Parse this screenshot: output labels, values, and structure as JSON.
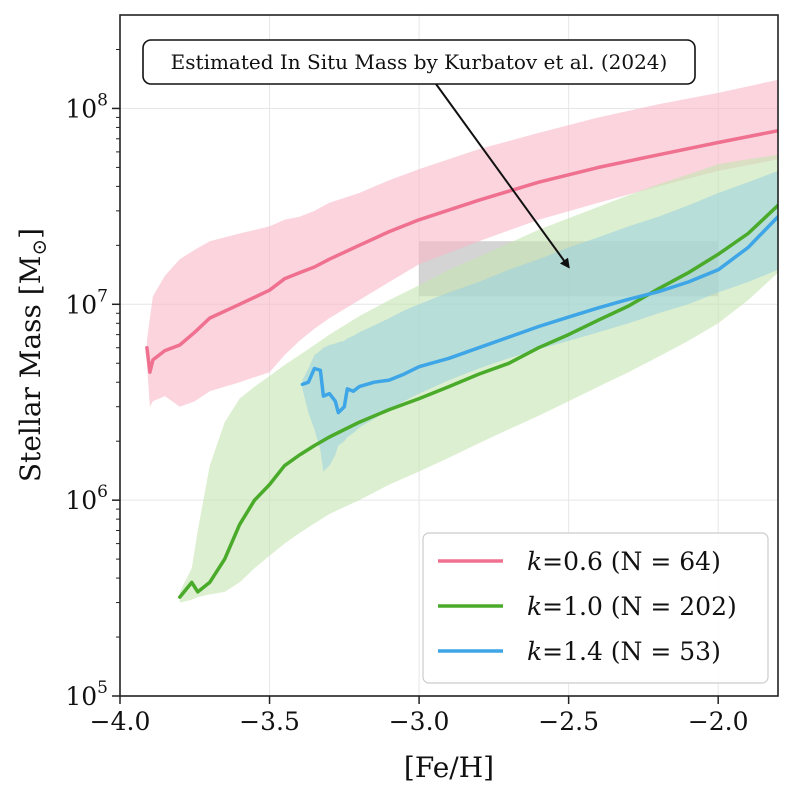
{
  "chart_data": {
    "type": "line",
    "xlabel": "[Fe/H]",
    "ylabel": "Stellar Mass [M",
    "ylabel_sub": "⊙",
    "ylabel_close": "]",
    "xlim": [
      -4.0,
      -1.8
    ],
    "ylim": [
      100000,
      300000000
    ],
    "yscale": "log",
    "grid": true,
    "x_ticks": [
      -4.0,
      -3.5,
      -3.0,
      -2.5,
      -2.0
    ],
    "x_tick_labels": [
      "−4.0",
      "−3.5",
      "−3.0",
      "−2.5",
      "−2.0"
    ],
    "y_ticks": [
      {
        "value": 100000,
        "base": "10",
        "exp": "5"
      },
      {
        "value": 1000000,
        "base": "10",
        "exp": "6"
      },
      {
        "value": 10000000,
        "base": "10",
        "exp": "7"
      },
      {
        "value": 100000000,
        "base": "10",
        "exp": "8"
      }
    ],
    "annotation": {
      "text": "Estimated In Situ Mass by Kurbatov et al. (2024)",
      "box_x": [
        -3.0,
        -2.0
      ],
      "box_y": [
        11000000,
        21000000
      ],
      "arrow_to": [
        -2.5,
        15500000
      ],
      "box_color": "#a9a9a9"
    },
    "legend_position": "lower-right",
    "series": [
      {
        "name": "k=0.6 (N = 64)",
        "k": "0.6",
        "n_label": "(N = 64)",
        "color": "#f07090",
        "band_color": "#f8b8c8",
        "x": [
          -3.91,
          -3.9,
          -3.89,
          -3.85,
          -3.8,
          -3.75,
          -3.7,
          -3.6,
          -3.5,
          -3.45,
          -3.4,
          -3.35,
          -3.3,
          -3.2,
          -3.1,
          -3.0,
          -2.8,
          -2.6,
          -2.4,
          -2.2,
          -2.0,
          -1.8
        ],
        "y": [
          6000000,
          4500000,
          5200000,
          5800000,
          6200000,
          7200000,
          8500000,
          10000000,
          11800000,
          13500000,
          14500000,
          15500000,
          17000000,
          20000000,
          23500000,
          27000000,
          34000000,
          42000000,
          50000000,
          58000000,
          67000000,
          77000000
        ],
        "lower": [
          5000000,
          3000000,
          3200000,
          3400000,
          3000000,
          3200000,
          3600000,
          4000000,
          4500000,
          5500000,
          6500000,
          7500000,
          8500000,
          10500000,
          13000000,
          16000000,
          21000000,
          27000000,
          33000000,
          40000000,
          48000000,
          55000000
        ],
        "upper": [
          6500000,
          8500000,
          11000000,
          14000000,
          17000000,
          19000000,
          21000000,
          23000000,
          25000000,
          27000000,
          28000000,
          30000000,
          33000000,
          37000000,
          43000000,
          49000000,
          62000000,
          75000000,
          90000000,
          105000000,
          120000000,
          140000000
        ]
      },
      {
        "name": "k=1.0 (N = 202)",
        "k": "1.0",
        "n_label": "(N = 202)",
        "color": "#4aaa2a",
        "band_color": "#c4e4b0",
        "x": [
          -3.8,
          -3.76,
          -3.74,
          -3.7,
          -3.65,
          -3.6,
          -3.55,
          -3.5,
          -3.45,
          -3.4,
          -3.35,
          -3.3,
          -3.2,
          -3.1,
          -3.0,
          -2.9,
          -2.8,
          -2.7,
          -2.6,
          -2.5,
          -2.4,
          -2.3,
          -2.2,
          -2.1,
          -2.0,
          -1.9,
          -1.8
        ],
        "y": [
          320000,
          380000,
          340000,
          380000,
          500000,
          750000,
          1000000,
          1200000,
          1500000,
          1700000,
          1900000,
          2100000,
          2500000,
          2900000,
          3300000,
          3800000,
          4400000,
          5000000,
          6000000,
          7000000,
          8300000,
          9800000,
          12000000,
          14500000,
          18000000,
          23000000,
          32000000
        ],
        "lower": [
          300000,
          310000,
          320000,
          330000,
          340000,
          380000,
          450000,
          520000,
          600000,
          680000,
          760000,
          850000,
          1000000,
          1200000,
          1400000,
          1650000,
          1950000,
          2300000,
          2700000,
          3200000,
          3800000,
          4500000,
          5400000,
          6500000,
          8000000,
          10500000,
          14500000
        ],
        "upper": [
          340000,
          450000,
          700000,
          1500000,
          2500000,
          3300000,
          3800000,
          4300000,
          4900000,
          5500000,
          6200000,
          7000000,
          8700000,
          10500000,
          12500000,
          15000000,
          17500000,
          20500000,
          24000000,
          27500000,
          31500000,
          36000000,
          41000000,
          46000000,
          52000000,
          55000000,
          58000000
        ]
      },
      {
        "name": "k=1.4 (N = 53)",
        "k": "1.4",
        "n_label": "(N = 53)",
        "color": "#3ea6e6",
        "band_color": "#9fd2df",
        "x": [
          -3.39,
          -3.37,
          -3.35,
          -3.33,
          -3.32,
          -3.3,
          -3.28,
          -3.27,
          -3.25,
          -3.24,
          -3.22,
          -3.2,
          -3.15,
          -3.1,
          -3.05,
          -3.0,
          -2.9,
          -2.8,
          -2.7,
          -2.6,
          -2.5,
          -2.4,
          -2.3,
          -2.2,
          -2.1,
          -2.0,
          -1.9,
          -1.8
        ],
        "y": [
          3900000,
          4000000,
          4700000,
          4600000,
          3400000,
          3500000,
          3200000,
          2800000,
          3000000,
          3700000,
          3600000,
          3800000,
          4000000,
          4100000,
          4400000,
          4800000,
          5300000,
          6000000,
          6800000,
          7700000,
          8600000,
          9600000,
          10600000,
          11600000,
          13000000,
          15000000,
          19500000,
          28000000
        ],
        "lower": [
          3700000,
          2800000,
          2300000,
          1800000,
          1400000,
          1500000,
          1700000,
          1900000,
          2000000,
          2100000,
          2200000,
          2350000,
          2600000,
          2900000,
          3200000,
          3500000,
          4100000,
          4700000,
          5300000,
          5900000,
          6500000,
          7200000,
          8000000,
          9000000,
          10000000,
          11500000,
          13000000,
          15000000
        ],
        "upper": [
          4100000,
          4700000,
          5500000,
          5800000,
          6000000,
          6200000,
          6300000,
          6400000,
          6500000,
          6700000,
          6900000,
          7200000,
          7800000,
          8500000,
          9300000,
          10000000,
          11500000,
          13000000,
          15000000,
          17000000,
          19500000,
          22000000,
          25000000,
          28000000,
          32000000,
          37000000,
          42000000,
          48000000
        ]
      }
    ]
  }
}
